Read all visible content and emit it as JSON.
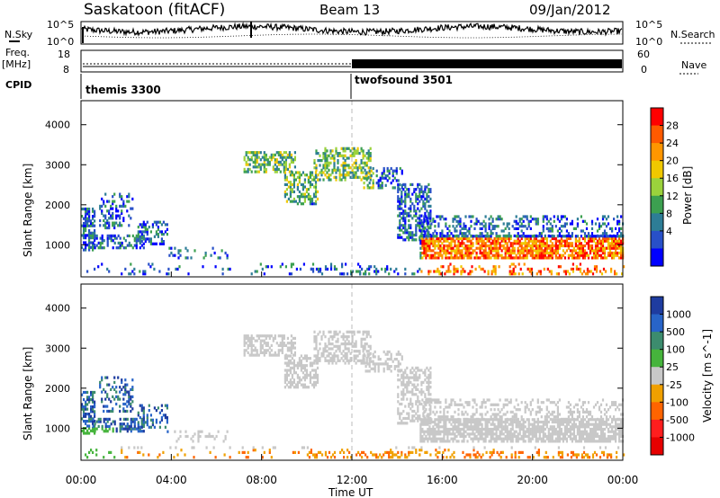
{
  "header": {
    "title": "Saskatoon (fitACF)",
    "beam": "Beam 13",
    "date": "09/Jan/2012"
  },
  "left_labels": {
    "nsky": "N.Sky",
    "freq_top": "Freq.",
    "freq_bottom": "[MHz]",
    "cpid": "CPID"
  },
  "right_labels": {
    "nsearch": "N.Search",
    "nave": "Nave"
  },
  "top_panel": {
    "left_ticks": [
      "10^5",
      "10^0"
    ],
    "right_ticks": [
      "10^5",
      "10^0"
    ]
  },
  "freq_panel": {
    "left_ticks": [
      "18",
      "8"
    ],
    "right_ticks": [
      "60",
      "0"
    ]
  },
  "cpid_panel": {
    "segments": [
      {
        "label": "themis 3300",
        "start_hour": 0
      },
      {
        "label": "twofsound 3501",
        "start_hour": 12
      }
    ]
  },
  "chart_data": [
    {
      "type": "heatmap",
      "name": "power",
      "ylabel": "Slant Range [km]",
      "yticks": [
        "4000",
        "3000",
        "2000",
        "1000"
      ],
      "ylim": [
        200,
        4600
      ],
      "xlim": [
        0,
        24
      ],
      "colorbar": {
        "label": "Power [dB]",
        "ticks": [
          "28",
          "24",
          "20",
          "16",
          "12",
          "8",
          "4"
        ],
        "colors": [
          "#ff0000",
          "#ff5a00",
          "#ff9600",
          "#f0c800",
          "#9bd23c",
          "#3ca050",
          "#2d7d96",
          "#2850c8",
          "#0000ff"
        ]
      }
    },
    {
      "type": "heatmap",
      "name": "velocity",
      "ylabel": "Slant Range [km]",
      "yticks": [
        "4000",
        "3000",
        "2000",
        "1000"
      ],
      "ylim": [
        200,
        4600
      ],
      "xlim": [
        0,
        24
      ],
      "xlabel": "Time UT",
      "xticks": [
        "00:00",
        "04:00",
        "08:00",
        "12:00",
        "16:00",
        "20:00",
        "00:00"
      ],
      "colorbar": {
        "label": "Velocity [m s^-1]",
        "ticks": [
          "1000",
          "500",
          "100",
          "25",
          "-25",
          "-100",
          "-500",
          "-1000"
        ],
        "colors": [
          "#1e3ca0",
          "#2864c8",
          "#3c8c6e",
          "#46b43c",
          "#c8c8c8",
          "#f0a000",
          "#ff6400",
          "#ff1e1e",
          "#e60000"
        ]
      }
    }
  ]
}
